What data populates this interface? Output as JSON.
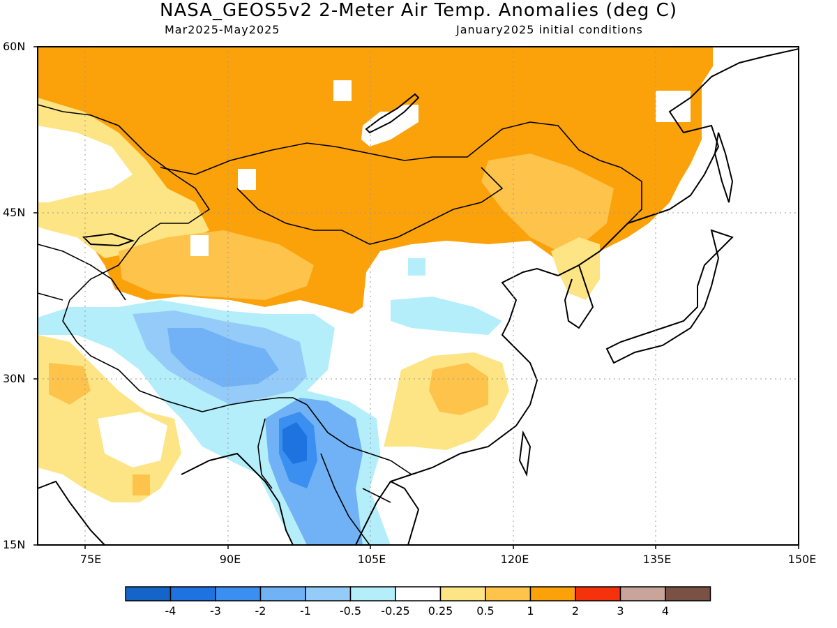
{
  "header": {
    "title": "NASA_GEOS5v2 2-Meter Air Temp. Anomalies (deg C)",
    "subtitle_left": "Mar2025-May2025",
    "subtitle_right": "January2025 initial conditions"
  },
  "map": {
    "lat_labels": [
      "60N",
      "45N",
      "30N",
      "15N"
    ],
    "lon_labels": [
      "75E",
      "90E",
      "105E",
      "120E",
      "135E",
      "150E"
    ],
    "extent": {
      "lon_min": 70,
      "lon_max": 150,
      "lat_min": 15,
      "lat_max": 60
    },
    "gridlines": "dotted"
  },
  "colorbar": {
    "labels": [
      "-4",
      "-3",
      "-2",
      "-1",
      "-0.5",
      "-0.25",
      "0.25",
      "0.5",
      "1",
      "2",
      "3",
      "4"
    ],
    "colors": [
      "#1565c8",
      "#1e73e0",
      "#3b8ff0",
      "#70b2f5",
      "#95cbf8",
      "#b4eefa",
      "#ffffff",
      "#fde484",
      "#fdc34a",
      "#fba10a",
      "#f5320b",
      "#c8a49a",
      "#7a5145"
    ]
  },
  "regions": {
    "siberia_mongolia": "warm",
    "central_asia": "warm",
    "tibet_plateau": "cool",
    "myanmar_indochina": "cold",
    "east_china": "neutral",
    "south_central_china": "warm",
    "japan_ocean": "neutral"
  }
}
